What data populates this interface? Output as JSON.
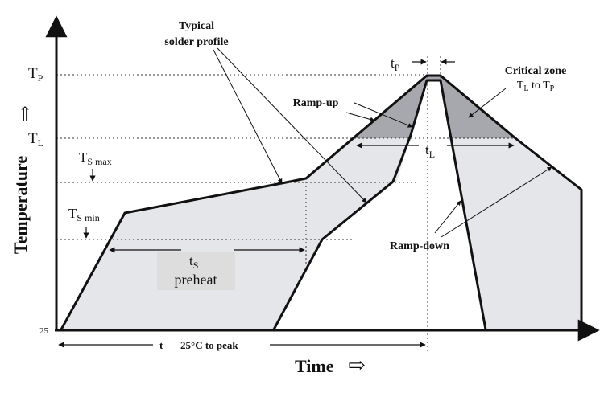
{
  "diagram": {
    "axes": {
      "y_axis_label": "Temperature",
      "y_axis_arrow": "⇑",
      "x_axis_label": "Time",
      "x_axis_arrow": "⇨",
      "origin_tick": "25"
    },
    "temperature_levels": {
      "tp": {
        "main": "T",
        "sub": "P"
      },
      "tl": {
        "main": "T",
        "sub": "L"
      },
      "ts_max": {
        "main": "T",
        "sub": "S max"
      },
      "ts_min": {
        "main": "T",
        "sub": "S min"
      }
    },
    "callouts": {
      "typical_profile_line1": "Typical",
      "typical_profile_line2": "solder profile",
      "ramp_up": "Ramp-up",
      "ramp_down": "Ramp-down",
      "critical_zone_line1": "Critical zone",
      "critical_zone_line2": {
        "a": "T",
        "a_sub": "L",
        "b": " to T",
        "b_sub": "P"
      }
    },
    "durations": {
      "tp": {
        "main": "t",
        "sub": "P"
      },
      "tl": {
        "main": "t",
        "sub": "L"
      },
      "ts": {
        "main": "t",
        "sub": "S"
      },
      "preheat": "preheat",
      "t_peak": {
        "main": "t",
        "rest": "25°C to peak"
      }
    },
    "colors": {
      "process_window_fill": "#e4e6ea",
      "critical_zone_fill": "#a7a8ae",
      "line": "#111111",
      "preheat_box": "#dddddd"
    }
  }
}
